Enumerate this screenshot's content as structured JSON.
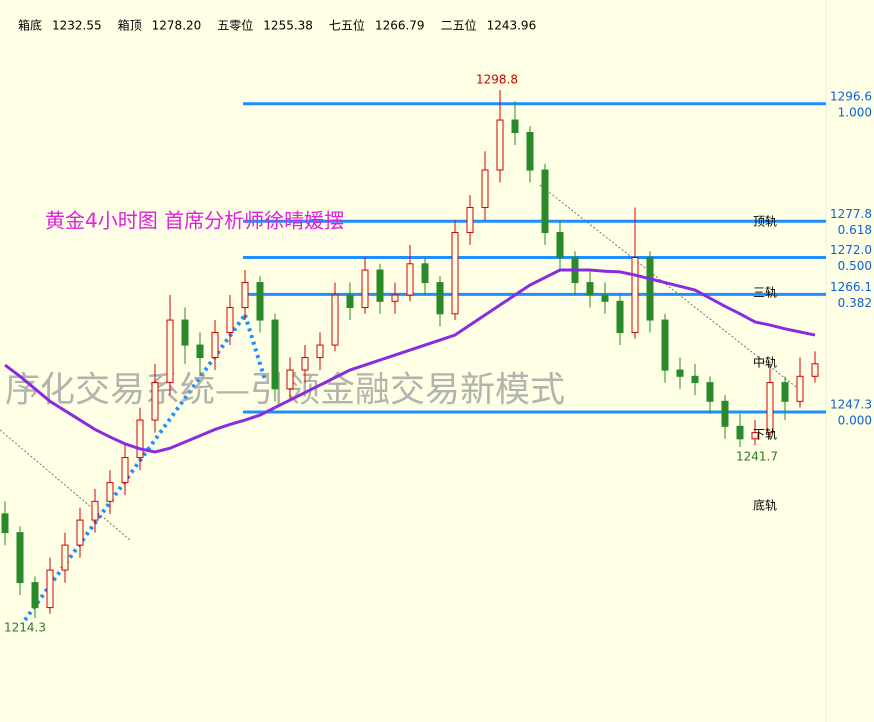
{
  "header": [
    {
      "label": "箱底",
      "value": "1232.55"
    },
    {
      "label": "箱顶",
      "value": "1278.20"
    },
    {
      "label": "五零位",
      "value": "1255.38"
    },
    {
      "label": "七五位",
      "value": "1266.79"
    },
    {
      "label": "二五位",
      "value": "1243.96"
    }
  ],
  "chart_data": {
    "type": "candlestick",
    "title": "黄金4小时图    首席分析师徐晴媛摆",
    "watermark": "序化交易系统—引领金融交易新模式",
    "ylim": [
      1197.7,
      1313.2
    ],
    "up_color": "#d00000",
    "down_color": "#2a8a2a",
    "ma_color": "#8a2be2",
    "level_color": "#1e8fff",
    "candles": [
      [
        1231,
        1233,
        1226,
        1228
      ],
      [
        1228,
        1229,
        1218,
        1220
      ],
      [
        1220,
        1221,
        1214.3,
        1216
      ],
      [
        1216,
        1224,
        1215,
        1222
      ],
      [
        1222,
        1228,
        1220,
        1226
      ],
      [
        1226,
        1232,
        1224,
        1230
      ],
      [
        1230,
        1235,
        1228,
        1233
      ],
      [
        1233,
        1238,
        1231,
        1236
      ],
      [
        1236,
        1242,
        1234,
        1240
      ],
      [
        1240,
        1248,
        1238,
        1246
      ],
      [
        1246,
        1255,
        1244,
        1252
      ],
      [
        1252,
        1266,
        1250,
        1262
      ],
      [
        1262,
        1264,
        1255,
        1258
      ],
      [
        1258,
        1260,
        1253,
        1256
      ],
      [
        1256,
        1262,
        1254,
        1260
      ],
      [
        1260,
        1266,
        1258,
        1264
      ],
      [
        1264,
        1270,
        1262,
        1268
      ],
      [
        1268,
        1269,
        1260,
        1262
      ],
      [
        1262,
        1263,
        1249,
        1251
      ],
      [
        1251,
        1256,
        1249,
        1254
      ],
      [
        1254,
        1258,
        1252,
        1256
      ],
      [
        1256,
        1260,
        1254,
        1258
      ],
      [
        1258,
        1268,
        1257,
        1266
      ],
      [
        1266,
        1268,
        1262,
        1264
      ],
      [
        1264,
        1272,
        1263,
        1270
      ],
      [
        1270,
        1271,
        1263,
        1265
      ],
      [
        1265,
        1268,
        1263,
        1266
      ],
      [
        1266,
        1274,
        1265,
        1271
      ],
      [
        1271,
        1272,
        1266,
        1268
      ],
      [
        1268,
        1269,
        1261,
        1263
      ],
      [
        1263,
        1278,
        1262,
        1276
      ],
      [
        1276,
        1282,
        1274,
        1280
      ],
      [
        1280,
        1289,
        1278,
        1286
      ],
      [
        1286,
        1298.8,
        1284,
        1294
      ],
      [
        1294,
        1297,
        1290,
        1292
      ],
      [
        1292,
        1293,
        1284,
        1286
      ],
      [
        1286,
        1287,
        1274,
        1276
      ],
      [
        1276,
        1278,
        1270,
        1272
      ],
      [
        1272,
        1273,
        1266,
        1268
      ],
      [
        1268,
        1270,
        1264,
        1266
      ],
      [
        1266,
        1268,
        1263,
        1265
      ],
      [
        1265,
        1266,
        1258,
        1260
      ],
      [
        1260,
        1280,
        1259,
        1272
      ],
      [
        1272,
        1273,
        1260,
        1262
      ],
      [
        1262,
        1263,
        1252,
        1254
      ],
      [
        1254,
        1256,
        1251,
        1253
      ],
      [
        1253,
        1255,
        1250,
        1252
      ],
      [
        1252,
        1253,
        1247,
        1249
      ],
      [
        1249,
        1250,
        1243,
        1245
      ],
      [
        1245,
        1247,
        1241.7,
        1243
      ],
      [
        1243,
        1246,
        1242,
        1244
      ],
      [
        1244,
        1255,
        1243,
        1252
      ],
      [
        1252,
        1253,
        1246,
        1249
      ],
      [
        1249,
        1256,
        1248,
        1253
      ],
      [
        1253,
        1257,
        1252,
        1255
      ]
    ],
    "ma": [
      1254.8,
      1253,
      1251,
      1249,
      1247.5,
      1246,
      1244.5,
      1243.3,
      1242.2,
      1241.4,
      1240.9,
      1241.5,
      1242.5,
      1243.5,
      1244.5,
      1245.3,
      1246,
      1246.8,
      1248,
      1249.2,
      1250.4,
      1251.6,
      1252.8,
      1254,
      1254.8,
      1255.6,
      1256.4,
      1257.2,
      1258,
      1258.8,
      1259.6,
      1261.2,
      1262.8,
      1264.4,
      1266,
      1267.6,
      1268.8,
      1270,
      1270,
      1270,
      1269.8,
      1269.7,
      1269.2,
      1268.6,
      1268,
      1267.4,
      1266.8,
      1265.5,
      1264.2,
      1263,
      1261.7,
      1261.2,
      1260.6,
      1260.1,
      1259.6
    ],
    "levels": [
      {
        "price": 1296.6,
        "ratio": {
          "value": 1,
          "label": "1.000"
        }
      },
      {
        "price": 1277.8,
        "ratio": 0.618
      },
      {
        "price": {
          "value": 1272,
          "label": "1272.0"
        },
        "ratio": {
          "value": 0.5,
          "label": "0.500"
        }
      },
      {
        "price": 1266.1,
        "ratio": 0.382
      },
      {
        "price": 1247.3,
        "ratio": {
          "value": 0,
          "label": "0.000"
        }
      }
    ],
    "annotations": [
      {
        "text": "1298.8",
        "value": 1298.8
      },
      {
        "text": "1241.7",
        "value": 1241.7
      },
      {
        "text": "1214.3",
        "value": 1214.3
      }
    ],
    "band_labels": [
      "顶轨",
      "三轨",
      "中轨",
      "下轨",
      "底轨"
    ]
  }
}
